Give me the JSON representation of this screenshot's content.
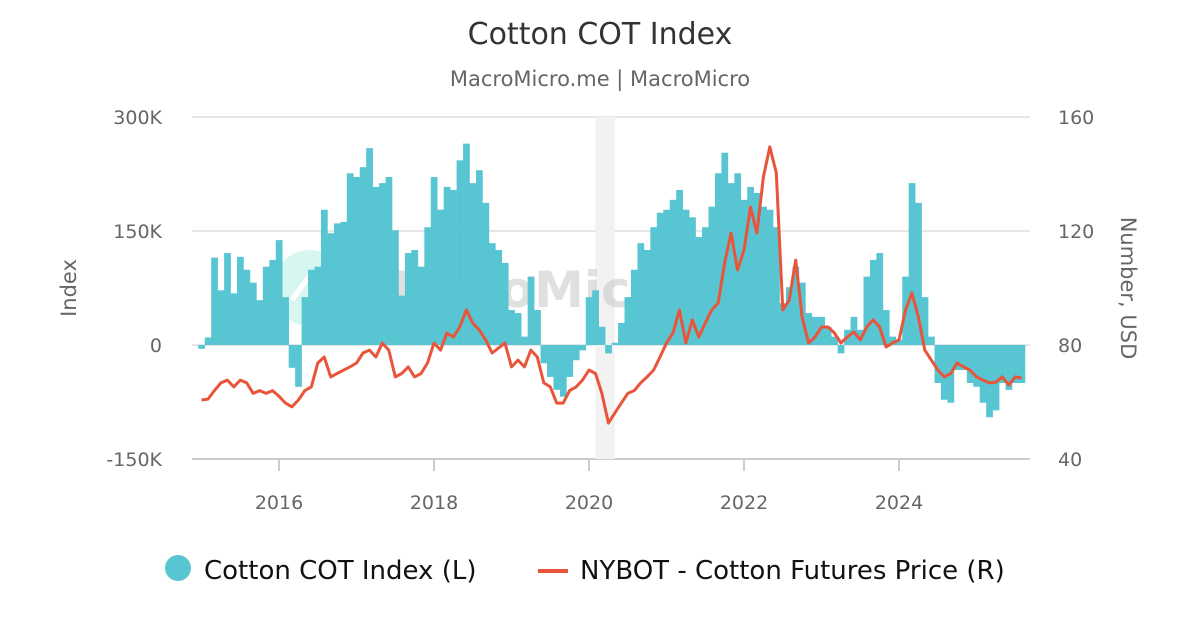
{
  "chart_data": {
    "type": "bar+line",
    "title": "Cotton COT Index",
    "subtitle": "MacroMicro.me | MacroMicro",
    "watermark": "MacroMicro",
    "y_left": {
      "label": "Index",
      "range": [
        -150000,
        300000
      ],
      "ticks": [
        300000,
        150000,
        0,
        -150000
      ],
      "tick_labels": [
        "300K",
        "150K",
        "0",
        "-150K"
      ]
    },
    "y_right": {
      "label": "Number, USD",
      "range": [
        40,
        160
      ],
      "ticks": [
        160,
        120,
        80,
        40
      ],
      "tick_labels": [
        "160",
        "120",
        "80",
        "40"
      ]
    },
    "x_ticks": [
      "2016",
      "2018",
      "2020",
      "2022",
      "2024"
    ],
    "grid": true,
    "legend_position": "bottom",
    "shaded_period": {
      "start": "2020-02",
      "end": "2020-04",
      "color": "#f2f2f2"
    },
    "dates": [
      "2015-01",
      "2015-02",
      "2015-03",
      "2015-04",
      "2015-05",
      "2015-06",
      "2015-07",
      "2015-08",
      "2015-09",
      "2015-10",
      "2015-11",
      "2015-12",
      "2016-01",
      "2016-02",
      "2016-03",
      "2016-04",
      "2016-05",
      "2016-06",
      "2016-07",
      "2016-08",
      "2016-09",
      "2016-10",
      "2016-11",
      "2016-12",
      "2017-01",
      "2017-02",
      "2017-03",
      "2017-04",
      "2017-05",
      "2017-06",
      "2017-07",
      "2017-08",
      "2017-09",
      "2017-10",
      "2017-11",
      "2017-12",
      "2018-01",
      "2018-02",
      "2018-03",
      "2018-04",
      "2018-05",
      "2018-06",
      "2018-07",
      "2018-08",
      "2018-09",
      "2018-10",
      "2018-11",
      "2018-12",
      "2019-01",
      "2019-02",
      "2019-03",
      "2019-04",
      "2019-05",
      "2019-06",
      "2019-07",
      "2019-08",
      "2019-09",
      "2019-10",
      "2019-11",
      "2019-12",
      "2020-01",
      "2020-02",
      "2020-03",
      "2020-04",
      "2020-05",
      "2020-06",
      "2020-07",
      "2020-08",
      "2020-09",
      "2020-10",
      "2020-11",
      "2020-12",
      "2021-01",
      "2021-02",
      "2021-03",
      "2021-04",
      "2021-05",
      "2021-06",
      "2021-07",
      "2021-08",
      "2021-09",
      "2021-10",
      "2021-11",
      "2021-12",
      "2022-01",
      "2022-02",
      "2022-03",
      "2022-04",
      "2022-05",
      "2022-06",
      "2022-07",
      "2022-08",
      "2022-09",
      "2022-10",
      "2022-11",
      "2022-12",
      "2023-01",
      "2023-02",
      "2023-03",
      "2023-04",
      "2023-05",
      "2023-06",
      "2023-07",
      "2023-08",
      "2023-09",
      "2023-10",
      "2023-11",
      "2023-12",
      "2024-01",
      "2024-02",
      "2024-03",
      "2024-04",
      "2024-05",
      "2024-06",
      "2024-07",
      "2024-08",
      "2024-09",
      "2024-10",
      "2024-11",
      "2024-12",
      "2025-01",
      "2025-02",
      "2025-03",
      "2025-04",
      "2025-05",
      "2025-06",
      "2025-07",
      "2025-08"
    ],
    "series": [
      {
        "name": "Cotton COT Index (L)",
        "type": "bar",
        "axis": "left",
        "color": "#58c6d2",
        "values": [
          -5000,
          10000,
          115000,
          72000,
          121000,
          68000,
          116000,
          99000,
          82000,
          59000,
          103000,
          112000,
          138000,
          63000,
          -30000,
          -55000,
          63000,
          99000,
          103000,
          178000,
          147000,
          160000,
          162000,
          226000,
          221000,
          234000,
          259000,
          208000,
          213000,
          221000,
          151000,
          65000,
          121000,
          125000,
          103000,
          155000,
          221000,
          178000,
          208000,
          204000,
          243000,
          265000,
          213000,
          230000,
          187000,
          134000,
          125000,
          108000,
          46000,
          42000,
          11000,
          90000,
          46000,
          -24000,
          -42000,
          -59000,
          -68000,
          -42000,
          -20000,
          -7000,
          63000,
          72000,
          24000,
          -11000,
          3000,
          29000,
          63000,
          99000,
          134000,
          125000,
          155000,
          174000,
          178000,
          191000,
          204000,
          178000,
          168000,
          142000,
          155000,
          182000,
          226000,
          253000,
          213000,
          226000,
          191000,
          208000,
          200000,
          182000,
          178000,
          155000,
          55000,
          76000,
          103000,
          82000,
          42000,
          37000,
          37000,
          24000,
          11000,
          -11000,
          20000,
          37000,
          20000,
          90000,
          112000,
          121000,
          46000,
          11000,
          7000,
          90000,
          213000,
          187000,
          63000,
          11000,
          -50000,
          -72000,
          -76000,
          -33000,
          -33000,
          -50000,
          -55000,
          -76000,
          -95000,
          -86000,
          -50000,
          -59000,
          -50000,
          -50000
        ]
      },
      {
        "name": "NYBOT - Cotton Futures Price (R)",
        "type": "line",
        "axis": "right",
        "color": "#e8553a",
        "values": [
          60.7,
          61,
          64,
          66.7,
          67.7,
          65.3,
          67.7,
          66.7,
          63,
          64,
          63,
          64,
          62,
          59.6,
          58.3,
          60.7,
          64,
          65.3,
          73.7,
          75.8,
          68.8,
          70,
          71.2,
          72.3,
          73.7,
          77.2,
          78.2,
          75.8,
          80.7,
          78.2,
          68.8,
          70,
          72.3,
          68.8,
          70,
          73.7,
          80.7,
          78.2,
          84.2,
          82.8,
          86.3,
          92.3,
          87.7,
          85.3,
          81.8,
          77.2,
          79,
          80.7,
          72.3,
          74.7,
          72.3,
          78.2,
          75.8,
          66.7,
          65.3,
          59.6,
          59.6,
          64,
          65.3,
          67.7,
          71.2,
          70,
          63,
          52.6,
          56.1,
          59.6,
          63,
          64,
          66.7,
          68.8,
          71.2,
          75.8,
          80.7,
          84.2,
          92.3,
          80.7,
          88.8,
          82.8,
          87.7,
          92.3,
          94.7,
          108.8,
          119.3,
          106.3,
          113.3,
          128.4,
          119.3,
          139,
          149.5,
          140.4,
          92.3,
          95.8,
          109.8,
          89.8,
          80.7,
          82.8,
          86.3,
          86.3,
          84.2,
          80.7,
          82.8,
          84.6,
          81.8,
          86.3,
          88.8,
          86.3,
          79.3,
          80.7,
          81.8,
          92.3,
          98.2,
          89.8,
          78.2,
          74.7,
          71.2,
          68.8,
          70,
          73.7,
          72.3,
          71.2,
          68.8,
          67.7,
          66.7,
          67,
          68.8,
          66,
          68.8,
          68.4
        ]
      }
    ]
  }
}
